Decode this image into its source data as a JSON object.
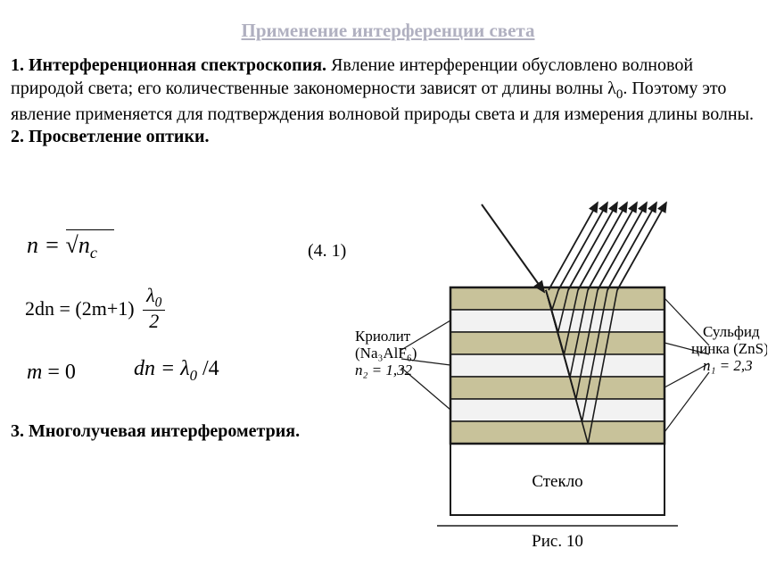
{
  "title": "Применение интерференции света",
  "para": {
    "p1_bold": "1. Интерференционная спектроскопия.",
    "p1_text": " Явление интерференции обусловлено волновой природой света; его количественные закономерности зависят от длины волны λ",
    "p1_sub": "0",
    "p1_text2": ". Поэтому это явление применяется для подтверждения волновой природы света и для измерения длины волны.",
    "p2_bold": "2. Просветление оптики."
  },
  "formulas": {
    "f1": "n = √n",
    "f1_sub": "c",
    "eqref": "(4. 1)",
    "f2_left": "2dn = (2m+1)",
    "f2_frac_top": "λ",
    "f2_frac_top_sub": "0",
    "f2_frac_bot": "2",
    "f3": "m = 0",
    "f4_left": "dn = λ",
    "f4_sub": "0",
    "f4_right": " /4"
  },
  "sec3": "3. Многолучевая интерферометрия.",
  "figure": {
    "left_label_l1": "Криолит",
    "left_label_l2": "(Na₃AlF₆)",
    "left_label_l3": "n₂ = 1,32",
    "right_label_l1": "Сульфид",
    "right_label_l2": "цинка (ZnS)",
    "right_label_l3": "n₁ = 2,3",
    "bottom_label": "Стекло",
    "caption": "Рис. 10",
    "colors": {
      "layer_dark": "#c8c29a",
      "layer_light": "#f2f2f2",
      "glass": "#ffffff",
      "stroke": "#1a1a1a"
    },
    "layers": 7
  }
}
